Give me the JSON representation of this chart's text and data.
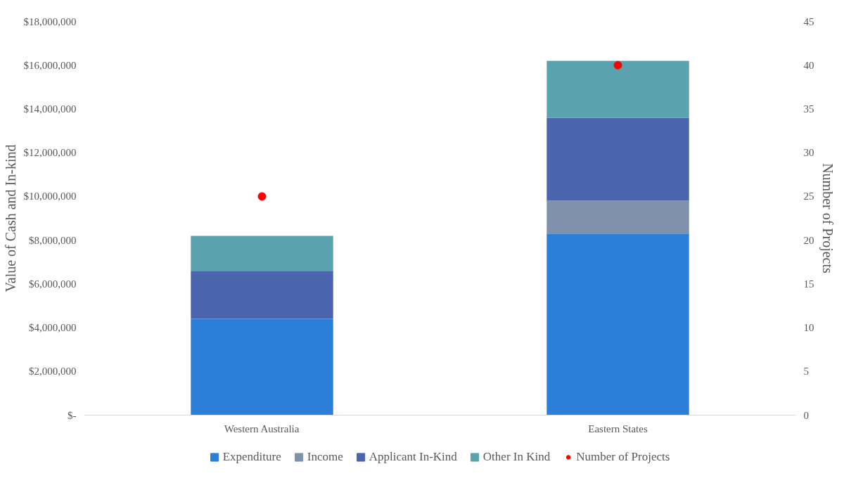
{
  "chart_data": {
    "type": "bar",
    "stacked": true,
    "categories": [
      "Western Australia",
      "Eastern States"
    ],
    "ylabel": "Value of Cash and In-kind",
    "y2label": "Number of Projects",
    "series": [
      {
        "name": "Expenditure",
        "color": "#2b7fd8",
        "values": [
          4400000,
          8300000
        ]
      },
      {
        "name": "Income",
        "color": "#7f91ad",
        "values": [
          0,
          1500000
        ]
      },
      {
        "name": "Applicant In-Kind",
        "color": "#4a65ae",
        "values": [
          2200000,
          3800000
        ]
      },
      {
        "name": "Other In Kind",
        "color": "#5aa3ae",
        "values": [
          1600000,
          2600000
        ]
      },
      {
        "name": "Number of Projects",
        "type": "scatter",
        "axis": "y2",
        "color": "#ff0000",
        "x": [
          "Western Australia",
          "Eastern States"
        ],
        "values": [
          25,
          40
        ]
      }
    ],
    "ylim": [
      0,
      18000000
    ],
    "yticks": [
      {
        "value": 0,
        "label": "$-"
      },
      {
        "value": 2000000,
        "label": "$2,000,000"
      },
      {
        "value": 4000000,
        "label": "$4,000,000"
      },
      {
        "value": 6000000,
        "label": "$6,000,000"
      },
      {
        "value": 8000000,
        "label": "$8,000,000"
      },
      {
        "value": 10000000,
        "label": "$10,000,000"
      },
      {
        "value": 12000000,
        "label": "$12,000,000"
      },
      {
        "value": 14000000,
        "label": "$14,000,000"
      },
      {
        "value": 16000000,
        "label": "$16,000,000"
      },
      {
        "value": 18000000,
        "label": "$18,000,000"
      }
    ],
    "y2lim": [
      0,
      45
    ],
    "y2ticks": [
      0,
      5,
      10,
      15,
      20,
      25,
      30,
      35,
      40,
      45
    ],
    "marker": "circle",
    "legend": "bottom",
    "grid": false
  }
}
